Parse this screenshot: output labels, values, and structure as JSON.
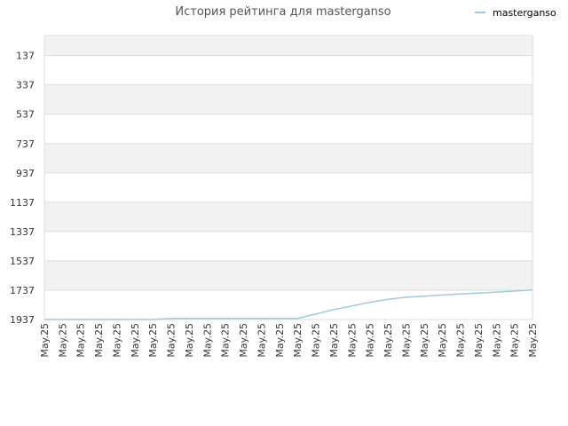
{
  "chart_data": {
    "type": "line",
    "title": "История рейтинга для masterganso",
    "xlabel": "",
    "ylabel": "",
    "y_reversed": true,
    "ylim": [
      1937,
      0
    ],
    "y_ticks": [
      137,
      337,
      537,
      737,
      937,
      1137,
      1337,
      1537,
      1737,
      1937
    ],
    "x_ticks": [
      "May.25",
      "May.25",
      "May.25",
      "May.25",
      "May.25",
      "May.25",
      "May.25",
      "May.25",
      "May.25",
      "May.25",
      "May.25",
      "May.25",
      "May.25",
      "May.25",
      "May.25",
      "May.25",
      "May.25",
      "May.25",
      "May.25",
      "May.25",
      "May.25",
      "May.25",
      "May.25",
      "May.25",
      "May.25",
      "May.25",
      "May.25",
      "May.25"
    ],
    "grid": true,
    "legend_position": "top-right",
    "series": [
      {
        "name": "masterganso",
        "color": "#9ecae1",
        "x_index": [
          0,
          1,
          2,
          3,
          4,
          5,
          6,
          7,
          8,
          9,
          10,
          11,
          12,
          13,
          14,
          15,
          16,
          17,
          18,
          19,
          20,
          21,
          22,
          23,
          24,
          25,
          26,
          27
        ],
        "values": [
          1937,
          1937,
          1937,
          1937,
          1937,
          1937,
          1937,
          1930,
          1930,
          1930,
          1930,
          1930,
          1930,
          1930,
          1930,
          1900,
          1870,
          1845,
          1820,
          1800,
          1785,
          1778,
          1770,
          1763,
          1757,
          1750,
          1743,
          1735
        ]
      }
    ]
  }
}
